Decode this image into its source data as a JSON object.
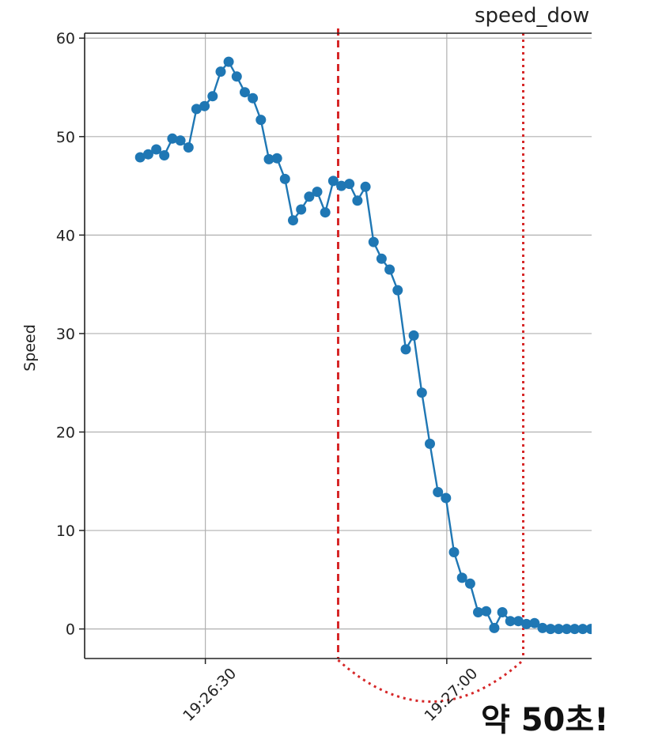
{
  "chart_data": {
    "type": "line",
    "title": "speed_dow",
    "xlabel": "",
    "ylabel": "Speed",
    "ylim": [
      -3,
      60.5
    ],
    "yticks": [
      0,
      10,
      20,
      30,
      40,
      50,
      60
    ],
    "xticks": [
      {
        "label": "19:26:30",
        "seconds": 30
      },
      {
        "label": "19:27:00",
        "seconds": 60
      }
    ],
    "x_unit": "seconds after 19:26:00",
    "xlim": [
      15,
      78
    ],
    "grid": true,
    "series": [
      {
        "color": "#1f77b4",
        "marker": "circle",
        "points": [
          [
            21.9,
            47.9
          ],
          [
            22.9,
            48.2
          ],
          [
            23.9,
            48.7
          ],
          [
            24.9,
            48.1
          ],
          [
            25.9,
            49.8
          ],
          [
            26.9,
            49.6
          ],
          [
            27.9,
            48.9
          ],
          [
            28.9,
            52.8
          ],
          [
            29.9,
            53.1
          ],
          [
            30.9,
            54.1
          ],
          [
            31.9,
            56.6
          ],
          [
            32.9,
            57.6
          ],
          [
            33.9,
            56.1
          ],
          [
            34.9,
            54.5
          ],
          [
            35.9,
            53.9
          ],
          [
            36.9,
            51.7
          ],
          [
            37.9,
            47.7
          ],
          [
            38.9,
            47.8
          ],
          [
            39.9,
            45.7
          ],
          [
            40.9,
            41.5
          ],
          [
            41.9,
            42.6
          ],
          [
            42.9,
            43.9
          ],
          [
            43.9,
            44.4
          ],
          [
            44.9,
            42.3
          ],
          [
            45.9,
            45.5
          ],
          [
            46.9,
            45.0
          ],
          [
            47.9,
            45.2
          ],
          [
            48.9,
            43.5
          ],
          [
            49.9,
            44.9
          ],
          [
            50.9,
            39.3
          ],
          [
            51.9,
            37.6
          ],
          [
            52.9,
            36.5
          ],
          [
            53.9,
            34.4
          ],
          [
            54.9,
            28.4
          ],
          [
            55.9,
            29.8
          ],
          [
            56.9,
            24.0
          ],
          [
            57.9,
            18.8
          ],
          [
            58.9,
            13.9
          ],
          [
            59.9,
            13.3
          ],
          [
            60.9,
            7.8
          ],
          [
            61.9,
            5.2
          ],
          [
            62.9,
            4.6
          ],
          [
            63.9,
            1.7
          ],
          [
            64.9,
            1.8
          ],
          [
            65.9,
            0.1
          ],
          [
            66.9,
            1.7
          ],
          [
            67.9,
            0.8
          ],
          [
            68.9,
            0.8
          ],
          [
            69.9,
            0.5
          ],
          [
            70.9,
            0.6
          ],
          [
            71.9,
            0.1
          ],
          [
            72.9,
            0.0
          ],
          [
            73.9,
            0.0
          ],
          [
            74.9,
            0.0
          ],
          [
            75.9,
            0.0
          ],
          [
            76.9,
            0.0
          ],
          [
            77.9,
            0.0
          ],
          [
            78.5,
            0.0
          ]
        ]
      }
    ],
    "annotations": {
      "marker_color": "#d62728",
      "start_seconds": 46.5,
      "end_seconds": 69.5,
      "label": "약 50초!"
    }
  }
}
